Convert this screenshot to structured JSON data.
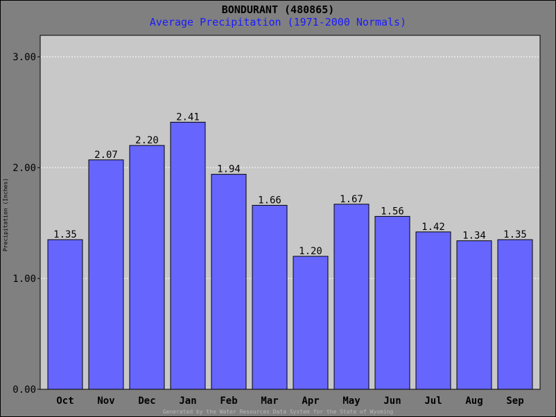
{
  "chart_data": {
    "type": "bar",
    "title": "BONDURANT (480865)",
    "subtitle": "Average Precipitation (1971-2000 Normals)",
    "ylabel": "Precipitation (Inches)",
    "categories": [
      "Oct",
      "Nov",
      "Dec",
      "Jan",
      "Feb",
      "Mar",
      "Apr",
      "May",
      "Jun",
      "Jul",
      "Aug",
      "Sep"
    ],
    "values": [
      1.35,
      2.07,
      2.2,
      2.41,
      1.94,
      1.66,
      1.2,
      1.67,
      1.56,
      1.42,
      1.34,
      1.35
    ],
    "value_labels": [
      "1.35",
      "2.07",
      "2.20",
      "2.41",
      "1.94",
      "1.66",
      "1.20",
      "1.67",
      "1.56",
      "1.42",
      "1.34",
      "1.35"
    ],
    "ylim": [
      0,
      3
    ],
    "yticks": [
      0,
      1,
      2,
      3
    ],
    "ytick_labels": [
      "0.00",
      "1.00",
      "2.00",
      "3.00"
    ],
    "grid": true,
    "colors": {
      "bar": "#6666ff",
      "plot_bg": "#c8c8c8",
      "frame_bg": "#808080",
      "subtitle": "#1a1aff"
    }
  },
  "footer": "Generated by the Water Resources Data System for the State of Wyoming"
}
